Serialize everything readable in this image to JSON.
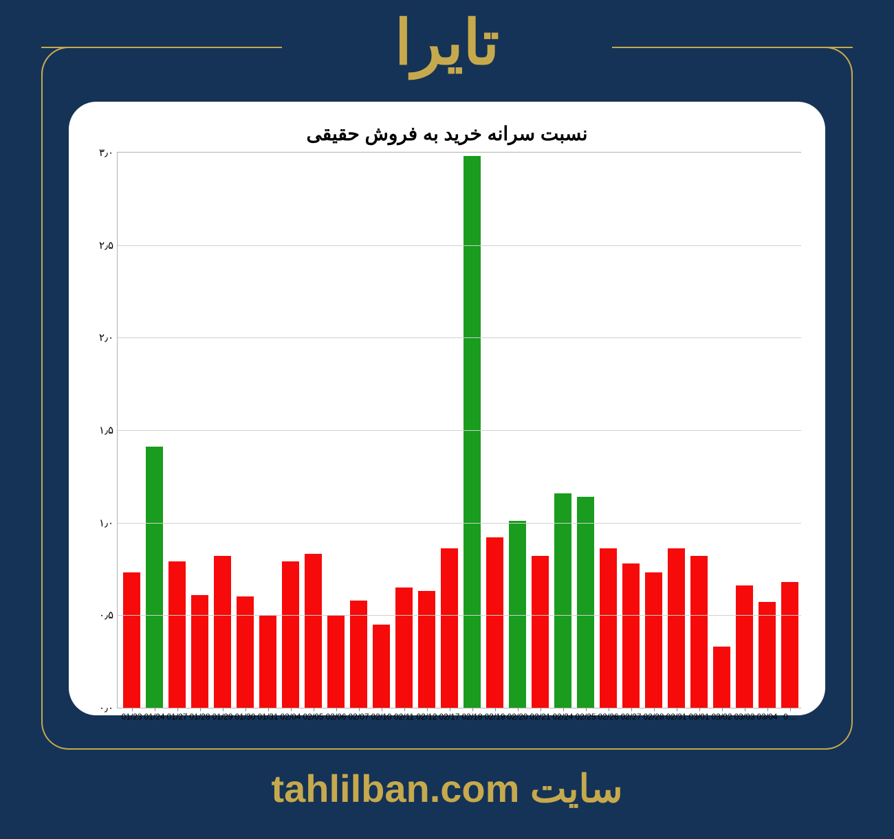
{
  "header": {
    "title": "تایرا",
    "border_color": "#c7a94d",
    "background_color": "#153356"
  },
  "footer": {
    "site_label": "سایت",
    "domain": "tahlilban.com",
    "color": "#c7a94d",
    "fontsize": 56
  },
  "chart": {
    "type": "bar",
    "title": "نسبت سرانه خرید به فروش حقیقی",
    "title_fontsize": 28,
    "title_color": "#000000",
    "background_color": "#ffffff",
    "card_radius": 40,
    "grid_color": "#d0d0d0",
    "axis_color": "#b0b0b0",
    "x_label_fontsize": 12,
    "y_label_fontsize": 15,
    "ylim": [
      0.0,
      3.0
    ],
    "ytick_step": 0.5,
    "yticks": [
      {
        "value": 0.0,
        "label": "۰٫۰"
      },
      {
        "value": 0.5,
        "label": "۰٫۵"
      },
      {
        "value": 1.0,
        "label": "۱٫۰"
      },
      {
        "value": 1.5,
        "label": "۱٫۵"
      },
      {
        "value": 2.0,
        "label": "۲٫۰"
      },
      {
        "value": 2.5,
        "label": "۲٫۵"
      },
      {
        "value": 3.0,
        "label": "۳٫۰"
      }
    ],
    "bar_width": 0.78,
    "colors": {
      "up": "#1a9c1f",
      "down": "#f70a0a"
    },
    "categories": [
      "01/23",
      "01/24",
      "01/27",
      "01/28",
      "01/29",
      "01/30",
      "01/31",
      "02/04",
      "02/05",
      "02/06",
      "02/07",
      "02/10",
      "02/11",
      "02/12",
      "02/17",
      "02/18",
      "02/19",
      "02/20",
      "02/21",
      "02/24",
      "02/25",
      "02/26",
      "02/27",
      "02/28",
      "02/31",
      "03/01",
      "03/02",
      "03/03",
      "03/04",
      "0…"
    ],
    "values": [
      0.73,
      1.41,
      0.79,
      0.61,
      0.82,
      0.6,
      0.5,
      0.79,
      0.83,
      0.5,
      0.58,
      0.45,
      0.65,
      0.63,
      0.86,
      2.98,
      0.92,
      1.01,
      0.82,
      1.16,
      1.14,
      0.86,
      0.78,
      0.73,
      0.86,
      0.82,
      0.33,
      0.66,
      0.57,
      0.68
    ],
    "bar_colors": [
      "#f70a0a",
      "#1a9c1f",
      "#f70a0a",
      "#f70a0a",
      "#f70a0a",
      "#f70a0a",
      "#f70a0a",
      "#f70a0a",
      "#f70a0a",
      "#f70a0a",
      "#f70a0a",
      "#f70a0a",
      "#f70a0a",
      "#f70a0a",
      "#f70a0a",
      "#1a9c1f",
      "#f70a0a",
      "#1a9c1f",
      "#f70a0a",
      "#1a9c1f",
      "#1a9c1f",
      "#f70a0a",
      "#f70a0a",
      "#f70a0a",
      "#f70a0a",
      "#f70a0a",
      "#f70a0a",
      "#f70a0a",
      "#f70a0a",
      "#f70a0a"
    ]
  }
}
